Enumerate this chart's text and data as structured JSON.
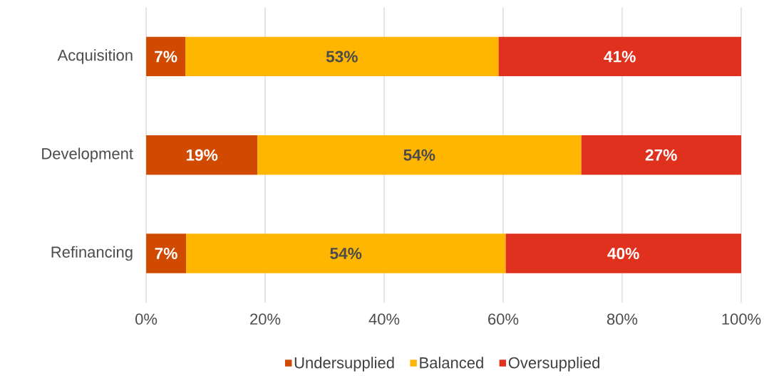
{
  "chart_data": {
    "type": "bar",
    "orientation": "horizontal",
    "stacked": true,
    "categories": [
      "Acquisition",
      "Development",
      "Refinancing"
    ],
    "series": [
      {
        "name": "Undersupplied",
        "color": "#d04a02",
        "values": [
          6.6,
          18.7,
          6.7
        ],
        "value_labels": [
          "7%",
          "19%",
          "7%"
        ]
      },
      {
        "name": "Balanced",
        "color": "#ffb600",
        "values": [
          52.6,
          54.4,
          53.7
        ],
        "value_labels": [
          "53%",
          "54%",
          "54%"
        ]
      },
      {
        "name": "Oversupplied",
        "color": "#e0301e",
        "values": [
          40.8,
          26.9,
          39.6
        ],
        "value_labels": [
          "41%",
          "27%",
          "40%"
        ]
      }
    ],
    "xlim": [
      0,
      100
    ],
    "xticks": [
      {
        "value": 0,
        "label": "0%"
      },
      {
        "value": 20,
        "label": "20%"
      },
      {
        "value": 40,
        "label": "40%"
      },
      {
        "value": 60,
        "label": "60%"
      },
      {
        "value": 80,
        "label": "80%"
      },
      {
        "value": 100,
        "label": "100%"
      }
    ],
    "grid": "x",
    "legend": "bottom"
  }
}
